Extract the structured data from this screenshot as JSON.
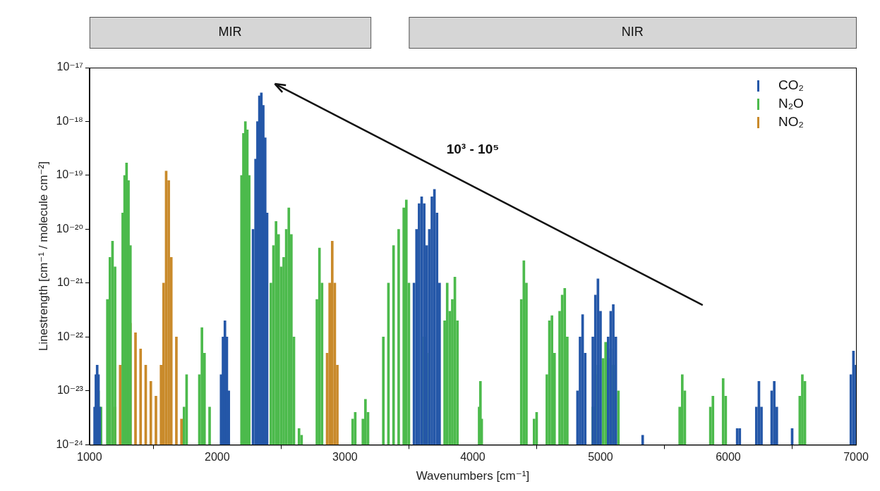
{
  "chart_data": {
    "type": "bar",
    "xlabel": "Wavenumbers [cm⁻¹]",
    "ylabel": "Linestrength [cm⁻¹ / molecule cm⁻²]",
    "xlim": [
      1000,
      7000
    ],
    "xticks": [
      1000,
      2000,
      3000,
      4000,
      5000,
      6000,
      7000
    ],
    "ylim": [
      1e-24,
      1e-17
    ],
    "yticks": [
      {
        "value": 1e-24,
        "label": "10⁻²⁴"
      },
      {
        "value": 1e-23,
        "label": "10⁻²³"
      },
      {
        "value": 1e-22,
        "label": "10⁻²²"
      },
      {
        "value": 1e-21,
        "label": "10⁻²¹"
      },
      {
        "value": 1e-20,
        "label": "10⁻²⁰"
      },
      {
        "value": 1e-19,
        "label": "10⁻¹⁹"
      },
      {
        "value": 1e-18,
        "label": "10⁻¹⁸"
      },
      {
        "value": 1e-17,
        "label": "10⁻¹⁷"
      }
    ],
    "log": "y",
    "grid": false,
    "legend": "top-right",
    "regions": [
      {
        "label": "MIR",
        "range": [
          1000,
          3200
        ]
      },
      {
        "label": "NIR",
        "range": [
          3500,
          7000
        ]
      }
    ],
    "annotations": [
      {
        "text": "10³ - 10⁵",
        "at": [
          4000,
          3e-19
        ],
        "arrow_from": [
          5800,
          3.9e-22
        ],
        "arrow_to": [
          2450,
          5e-18
        ]
      }
    ],
    "series": [
      {
        "name": "CO₂",
        "color": "#2457a8",
        "x": [
          1040,
          1050,
          1060,
          1070,
          1080,
          2030,
          2045,
          2060,
          2075,
          2090,
          2280,
          2300,
          2315,
          2330,
          2345,
          2360,
          2375,
          2390,
          3540,
          3560,
          3580,
          3600,
          3620,
          3640,
          3660,
          3680,
          3700,
          3720,
          3740,
          4820,
          4840,
          4860,
          4880,
          4940,
          4960,
          4980,
          5000,
          5060,
          5080,
          5100,
          5120,
          5330,
          6070,
          6090,
          6220,
          6240,
          6260,
          6340,
          6360,
          6380,
          6500,
          6960,
          6980,
          7000
        ],
        "values": [
          5e-24,
          2e-23,
          3e-23,
          2e-23,
          5e-24,
          2e-23,
          1e-22,
          2e-22,
          1e-22,
          1e-23,
          1e-20,
          2e-19,
          1e-18,
          3e-18,
          3.4e-18,
          2e-18,
          5e-19,
          2e-20,
          1e-21,
          1e-20,
          3e-20,
          4e-20,
          3e-20,
          5e-21,
          1e-20,
          4e-20,
          5.5e-20,
          2e-20,
          1e-21,
          1e-23,
          1e-22,
          2.6e-22,
          5e-23,
          1e-22,
          6e-22,
          1.2e-21,
          3e-22,
          1e-22,
          3e-22,
          4e-22,
          1e-22,
          1.5e-24,
          2e-24,
          2e-24,
          5e-24,
          1.5e-23,
          5e-24,
          1e-23,
          1.5e-23,
          5e-24,
          2e-24,
          2e-23,
          5.5e-23,
          3e-23
        ]
      },
      {
        "name": "N₂O",
        "color": "#4cba4c",
        "x": [
          1050,
          1070,
          1090,
          1140,
          1160,
          1180,
          1200,
          1260,
          1275,
          1290,
          1305,
          1320,
          1740,
          1760,
          1860,
          1880,
          1900,
          1940,
          2190,
          2205,
          2220,
          2235,
          2250,
          2420,
          2440,
          2460,
          2480,
          2500,
          2520,
          2540,
          2560,
          2580,
          2600,
          2640,
          2660,
          2780,
          2800,
          2820,
          3060,
          3080,
          3140,
          3160,
          3180,
          3300,
          3340,
          3380,
          3420,
          3460,
          3480,
          3500,
          3620,
          3640,
          3780,
          3800,
          3820,
          3840,
          3860,
          3880,
          4050,
          4060,
          4070,
          4380,
          4400,
          4420,
          4480,
          4500,
          4580,
          4600,
          4620,
          4640,
          4680,
          4700,
          4720,
          4740,
          4940,
          4960,
          4980,
          5020,
          5040,
          5060,
          5080,
          5100,
          5140,
          5620,
          5640,
          5660,
          5860,
          5880,
          5960,
          5980,
          6560,
          6580,
          6600
        ],
        "values": [
          5e-24,
          1e-23,
          5e-24,
          5e-22,
          3e-21,
          6e-21,
          2e-21,
          2e-20,
          1e-19,
          1.7e-19,
          8e-20,
          5e-21,
          5e-24,
          2e-23,
          2e-23,
          1.5e-22,
          5e-23,
          5e-24,
          1e-19,
          6e-19,
          1e-18,
          7e-19,
          1e-19,
          1e-21,
          5e-21,
          1.4e-20,
          8e-21,
          2e-21,
          3e-21,
          1e-20,
          2.5e-20,
          8e-21,
          1e-22,
          2e-24,
          1.5e-24,
          5e-22,
          4.5e-21,
          1e-21,
          3e-24,
          4e-24,
          3e-24,
          7e-24,
          4e-24,
          1e-22,
          1e-21,
          5e-21,
          1e-20,
          2.5e-20,
          3.5e-20,
          1e-21,
          1e-22,
          5e-23,
          2e-22,
          1e-21,
          3e-22,
          5e-22,
          1.3e-21,
          2e-22,
          5e-24,
          1.5e-23,
          3e-24,
          5e-22,
          2.6e-21,
          1e-21,
          3e-24,
          4e-24,
          2e-23,
          2e-22,
          2.5e-22,
          5e-23,
          3e-22,
          6e-22,
          8e-22,
          1e-22,
          5e-24,
          2e-23,
          3e-23,
          4e-23,
          8e-23,
          4e-23,
          6e-23,
          3e-23,
          1e-23,
          5e-24,
          2e-23,
          1e-23,
          5e-24,
          8e-24,
          1.7e-23,
          8e-24,
          8e-24,
          2e-23,
          1.5e-23
        ]
      },
      {
        "name": "NO₂",
        "color": "#c98a2a",
        "x": [
          1200,
          1240,
          1280,
          1320,
          1360,
          1400,
          1440,
          1480,
          1520,
          1560,
          1580,
          1600,
          1620,
          1640,
          1680,
          1720,
          2860,
          2880,
          2900,
          2920,
          2940
        ],
        "values": [
          5e-24,
          3e-23,
          1e-22,
          1.8e-22,
          1.2e-22,
          6e-23,
          3e-23,
          1.5e-23,
          8e-24,
          3e-23,
          1e-21,
          1.2e-19,
          8e-20,
          3e-21,
          1e-22,
          3e-24,
          5e-23,
          1e-21,
          6e-21,
          1e-21,
          3e-23
        ]
      }
    ]
  }
}
